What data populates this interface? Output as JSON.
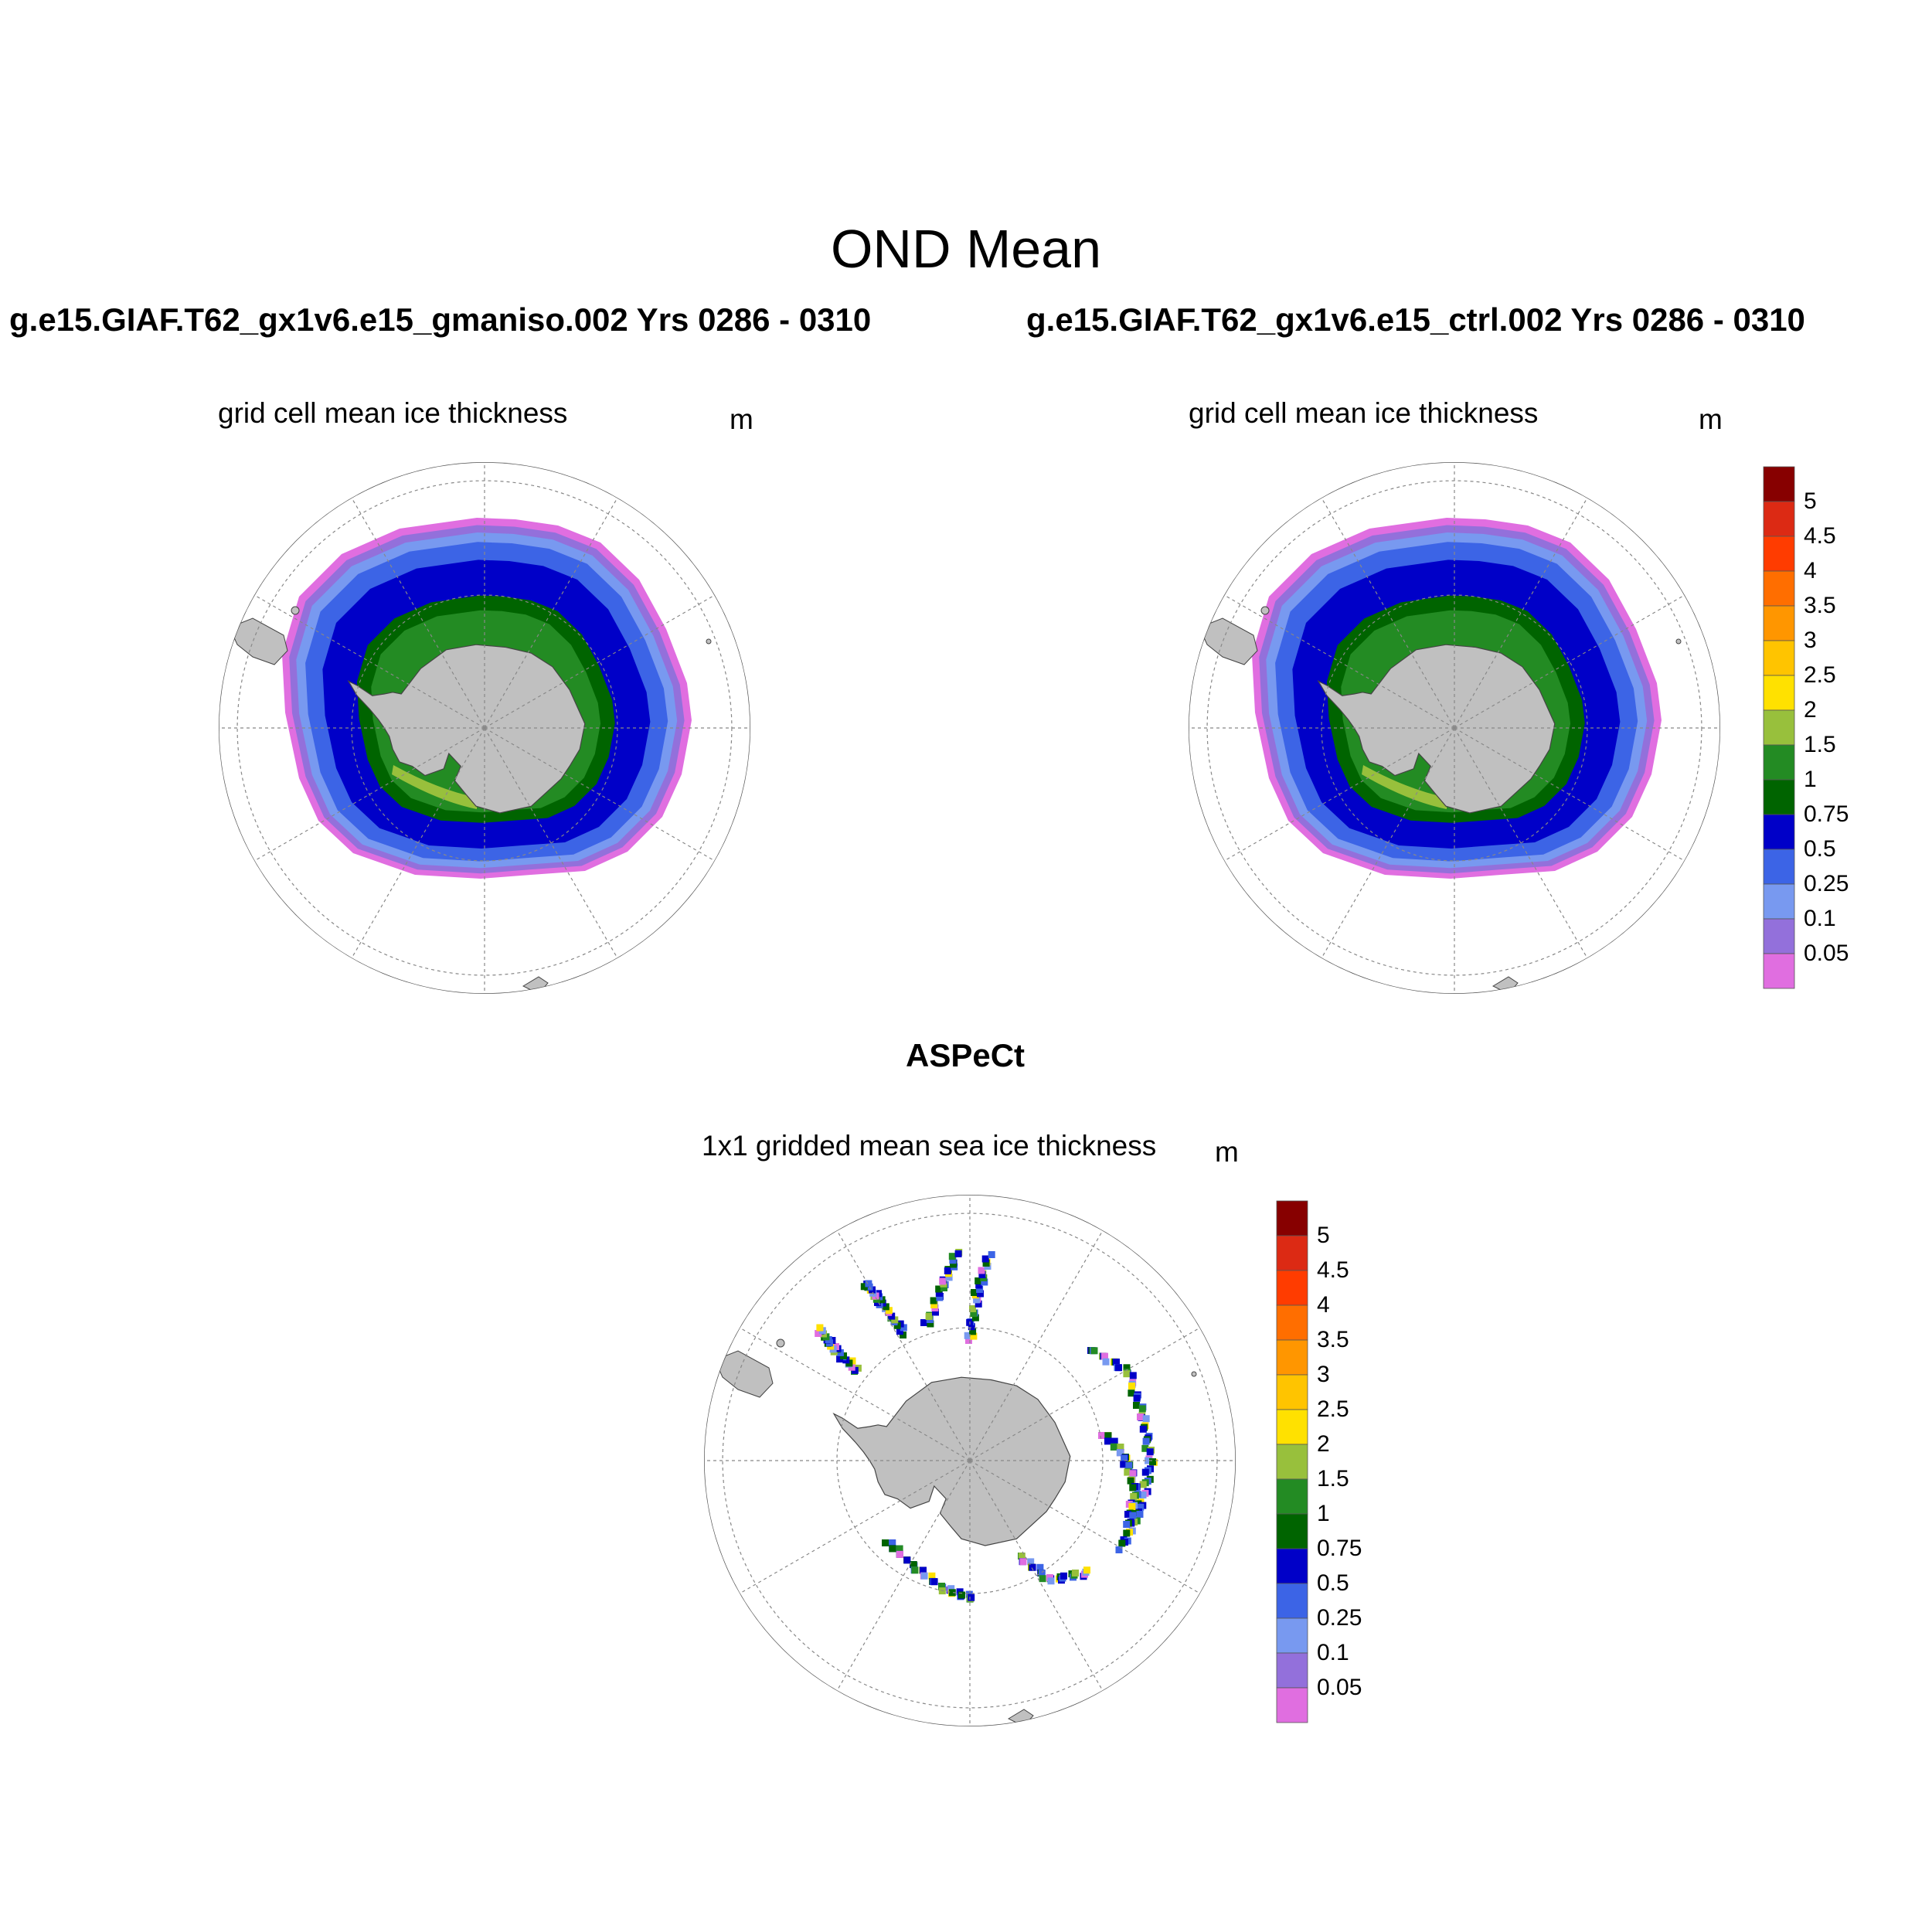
{
  "main_title": "OND Mean",
  "panels": [
    {
      "case_title": "g.e15.GIAF.T62_gx1v6.e15_gmaniso.002  Yrs 0286 - 0310",
      "variable": "grid cell mean ice thickness",
      "units": "m"
    },
    {
      "case_title": "g.e15.GIAF.T62_gx1v6.e15_ctrl.002  Yrs 0286 - 0310",
      "variable": "grid cell mean ice thickness",
      "units": "m"
    },
    {
      "case_title": "ASPeCt",
      "variable": "1x1 gridded mean sea ice thickness",
      "units": "m"
    }
  ],
  "colorbar": {
    "labels": [
      "5",
      "4.5",
      "4",
      "3.5",
      "3",
      "2.5",
      "2",
      "1.5",
      "1",
      "0.75",
      "0.5",
      "0.25",
      "0.1",
      "0.05"
    ],
    "colors": [
      "#870000",
      "#dc2a14",
      "#ff3c00",
      "#ff6e00",
      "#ff9600",
      "#ffc400",
      "#ffe100",
      "#98c03c",
      "#238b23",
      "#006400",
      "#0000c8",
      "#3c64e6",
      "#7899f0",
      "#9370db",
      "#e06ee0"
    ]
  },
  "colors": {
    "land": "#c0c0c0",
    "gridline": "#888888"
  }
}
